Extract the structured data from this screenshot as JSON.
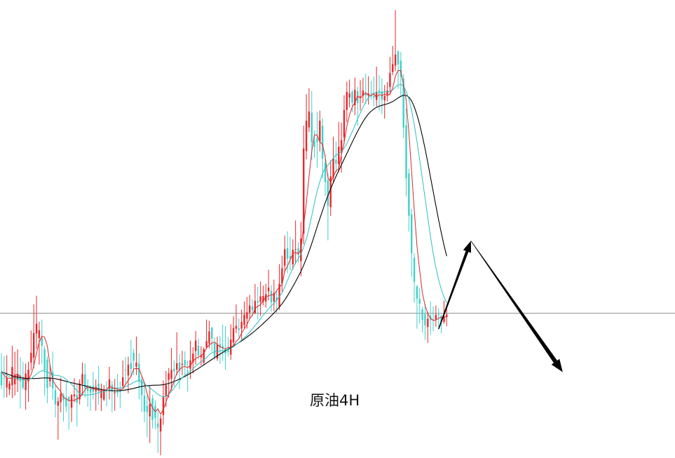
{
  "chart_data": {
    "type": "candlestick",
    "title": "",
    "annotation": "原油4H",
    "xlabel": "",
    "ylabel": "",
    "grid": false,
    "legend": "none",
    "colors": {
      "up": "#e8262c",
      "down": "#3fd0c8",
      "ma_fast": "#d42a2a",
      "ma_mid": "#2bbfbf",
      "ma_slow": "#000000",
      "level_line": "#8a8a8a",
      "arrow": "#000000"
    },
    "ylim": [
      0,
      100
    ],
    "horizontal_level": 32,
    "candles": [
      [
        19.04,
        16.09,
        23.14,
        15.27
      ],
      [
        17.66,
        17.53,
        22.52,
        13.26
      ],
      [
        15.58,
        17.78,
        22.72,
        13.4
      ],
      [
        15.13,
        16.49,
        17.06,
        13.94
      ],
      [
        16.07,
        20.11,
        24.8,
        13.22
      ],
      [
        16.29,
        18.46,
        23.49,
        13.82
      ],
      [
        17.28,
        18.63,
        24.04,
        14.58
      ],
      [
        18.29,
        16.91,
        22.28,
        10.94
      ],
      [
        17.96,
        15.49,
        21.21,
        15.14
      ],
      [
        15.01,
        18.68,
        20.9,
        10.64
      ],
      [
        16.91,
        19.54,
        21.26,
        12.38
      ],
      [
        21.08,
        23.24,
        28.19,
        19.38
      ],
      [
        22.16,
        27.64,
        33.96,
        19.84
      ],
      [
        27.53,
        29.67,
        35.88,
        24.08
      ],
      [
        26.48,
        28.26,
        30.12,
        20.65
      ],
      [
        26.62,
        24.76,
        30.6,
        20.82
      ],
      [
        24.05,
        19.39,
        24.72,
        13.78
      ],
      [
        21.76,
        15.49,
        22.44,
        12.14
      ],
      [
        16.97,
        17.68,
        20.66,
        15.73
      ],
      [
        19.03,
        15.44,
        23.53,
        12.92
      ],
      [
        14.98,
        11.85,
        16.14,
        8.97
      ],
      [
        11.55,
        12.53,
        13.45,
        4.06
      ],
      [
        12.34,
        14.16,
        17.75,
        10.09
      ],
      [
        13.9,
        12.79,
        14.39,
        8.03
      ],
      [
        13.23,
        11.37,
        16.66,
        10.11
      ],
      [
        13.48,
        12.6,
        13.63,
        6.27
      ],
      [
        11.11,
        13.91,
        14.11,
        7.96
      ],
      [
        13.63,
        14.05,
        17.61,
        12.27
      ],
      [
        13.96,
        12.2,
        16.4,
        6.93
      ],
      [
        12.95,
        16.48,
        17.4,
        11.87
      ],
      [
        16.37,
        18.51,
        21.08,
        13.8
      ],
      [
        18.45,
        15.42,
        20.89,
        13.35
      ],
      [
        16.06,
        14.8,
        17.41,
        11.31
      ],
      [
        15.24,
        14.42,
        16.17,
        10.39
      ],
      [
        15.96,
        14.64,
        19.08,
        12.97
      ],
      [
        14.73,
        15.78,
        17.35,
        10.46
      ],
      [
        16.43,
        14.77,
        20.3,
        11.73
      ],
      [
        13.25,
        14.7,
        16.46,
        10.38
      ],
      [
        12.92,
        14.98,
        16.1,
        12.59
      ],
      [
        15.43,
        15.39,
        16.99,
        11.42
      ],
      [
        15.34,
        17.37,
        20.16,
        12.95
      ],
      [
        16.21,
        14.73,
        17.05,
        10.1
      ],
      [
        14.3,
        14.52,
        17.49,
        10.46
      ],
      [
        14.72,
        14.38,
        18.56,
        13.48
      ],
      [
        14.79,
        14.56,
        16.85,
        11.02
      ],
      [
        15.87,
        17.83,
        21.55,
        15.41
      ],
      [
        19.54,
        19.5,
        22.35,
        16.11
      ],
      [
        18.26,
        20.62,
        22.39,
        14.31
      ],
      [
        21.01,
        19.69,
        26.15,
        18.06
      ],
      [
        23.23,
        21.49,
        24.1,
        18.31
      ],
      [
        20.16,
        21.08,
        26.84,
        18.33
      ],
      [
        20.86,
        16.92,
        23.13,
        12.99
      ],
      [
        17.32,
        13.91,
        17.99,
        10.14
      ],
      [
        13.77,
        10.3,
        16.75,
        7.89
      ],
      [
        11.55,
        10.13,
        13.89,
        4.58
      ],
      [
        9.2,
        11.91,
        16.0,
        3.34
      ],
      [
        13.2,
        8.44,
        13.97,
        6.53
      ],
      [
        11.55,
        8.88,
        12.74,
        6.35
      ],
      [
        7.61,
        6.72,
        10.54,
        1.14
      ],
      [
        5.87,
        8.74,
        9.45,
        0.6
      ],
      [
        9.5,
        13.64,
        17.16,
        7.33
      ],
      [
        13.59,
        16.13,
        19.23,
        11.3
      ],
      [
        17.3,
        18.72,
        19.88,
        13.3
      ],
      [
        17.52,
        19.49,
        24.33,
        14.92
      ],
      [
        19.73,
        19.17,
        21.54,
        15.78
      ],
      [
        19.54,
        20.94,
        27.78,
        18.33
      ],
      [
        21.08,
        19.24,
        22.93,
        15.23
      ],
      [
        20.61,
        20.82,
        23.7,
        18.28
      ],
      [
        21.68,
        20.49,
        23.61,
        18.37
      ],
      [
        19.35,
        19.29,
        21.52,
        14.66
      ],
      [
        19.73,
        21.58,
        25.93,
        17.44
      ],
      [
        21.2,
        23.07,
        24.51,
        18.71
      ],
      [
        23.63,
        25.97,
        28.07,
        20.68
      ],
      [
        24.78,
        22.67,
        26.32,
        21.75
      ],
      [
        22.27,
        22.72,
        24.71,
        20.46
      ],
      [
        21.09,
        24.07,
        24.44,
        20.5
      ],
      [
        24.46,
        25.84,
        30.59,
        24.07
      ],
      [
        25.32,
        27.99,
        30.32,
        24.28
      ],
      [
        28.84,
        26.41,
        28.98,
        23.52
      ],
      [
        25.39,
        22.31,
        26.63,
        21.64
      ],
      [
        21.96,
        25.05,
        26.82,
        21.47
      ],
      [
        25.13,
        24.44,
        26.95,
        20.77
      ],
      [
        24.72,
        24.24,
        29.51,
        21.5
      ],
      [
        23.91,
        23.12,
        29.15,
        19.53
      ],
      [
        24.03,
        23.41,
        26.71,
        22.47
      ],
      [
        22.85,
        26.21,
        29.58,
        21.7
      ],
      [
        25.53,
        28.74,
        31.29,
        24.86
      ],
      [
        28.57,
        29.18,
        33.94,
        27.57
      ],
      [
        28.67,
        28.29,
        30.83,
        26.37
      ],
      [
        28.59,
        30.08,
        32.79,
        26.24
      ],
      [
        29.39,
        31.68,
        34.56,
        28.73
      ],
      [
        30.8,
        32.22,
        35.59,
        28.61
      ],
      [
        32.14,
        33.7,
        36.07,
        30.72
      ],
      [
        33.48,
        32.71,
        35.14,
        31.3
      ],
      [
        32.02,
        34.73,
        38.44,
        31.81
      ],
      [
        34.67,
        34.33,
        37.83,
        30.61
      ],
      [
        34.52,
        35.74,
        39.01,
        31.4
      ],
      [
        34.5,
        35.83,
        38.09,
        33.73
      ],
      [
        34.59,
        36.2,
        38.49,
        33.24
      ],
      [
        36.83,
        37.68,
        41.62,
        34.83
      ],
      [
        36.94,
        34.41,
        38.2,
        32.36
      ],
      [
        34.62,
        36.48,
        39.44,
        32.48
      ],
      [
        35.5,
        34.84,
        36.88,
        32.11
      ],
      [
        33.45,
        38.51,
        42.87,
        32.71
      ],
      [
        38.6,
        41.92,
        44.74,
        36.74
      ],
      [
        42.52,
        46.16,
        49.17,
        40.97
      ],
      [
        46.42,
        44.03,
        50.11,
        40.85
      ],
      [
        44.64,
        44.1,
        48.91,
        41.51
      ],
      [
        42.81,
        46.02,
        48.32,
        41.63
      ],
      [
        46.05,
        46.16,
        52.51,
        42.84
      ],
      [
        46.35,
        45.01,
        47.67,
        43.18
      ],
      [
        43.51,
        48.51,
        52.19,
        40.21
      ],
      [
        49.6,
        68.43,
        73.46,
        47.27
      ],
      [
        67.87,
        74.55,
        80.41,
        66.01
      ],
      [
        73.09,
        76.63,
        81.72,
        72.04
      ],
      [
        76.33,
        69.78,
        81.13,
        65.93
      ],
      [
        69.96,
        68.8,
        72.43,
        66.42
      ],
      [
        70.67,
        69.81,
        76.52,
        64.16
      ],
      [
        70.01,
        74.55,
        76.78,
        67.77
      ],
      [
        73.48,
        66.17,
        75.12,
        61.84
      ],
      [
        65.16,
        60.96,
        66.93,
        57.96
      ],
      [
        61.41,
        55.71,
        62.9,
        48.11
      ],
      [
        55.46,
        62.25,
        65.8,
        53.52
      ],
      [
        61.97,
        66.21,
        71.03,
        60.7
      ],
      [
        65.92,
        65.06,
        69.94,
        63.12
      ],
      [
        64.98,
        68.78,
        74.3,
        63.22
      ],
      [
        67.76,
        70.27,
        74.12,
        63.09
      ],
      [
        70.94,
        76.93,
        80.2,
        69.38
      ],
      [
        76.94,
        80.91,
        83.21,
        74.24
      ],
      [
        79.7,
        80.58,
        83.65,
        77.55
      ],
      [
        80.96,
        78.6,
        81.37,
        76.46
      ],
      [
        77.99,
        81.37,
        84.09,
        75.77
      ],
      [
        81.07,
        78.45,
        82.06,
        73.38
      ],
      [
        79.55,
        79.89,
        83.5,
        76.78
      ],
      [
        80.09,
        81.21,
        84.01,
        78.47
      ],
      [
        80.44,
        80.1,
        85.01,
        78.26
      ],
      [
        80.13,
        80.56,
        84.38,
        78.14
      ],
      [
        80.64,
        80.63,
        83.37,
        79.21
      ],
      [
        80.12,
        79.66,
        84.31,
        77.71
      ],
      [
        79.14,
        80.92,
        86.53,
        77.72
      ],
      [
        81.26,
        80.9,
        84.6,
        76.8
      ],
      [
        81.04,
        79.22,
        83.88,
        75.99
      ],
      [
        79.05,
        80.05,
        82.46,
        75.02
      ],
      [
        80.33,
        81.19,
        83.12,
        78.82
      ],
      [
        82.01,
        85.07,
        88.67,
        80.2
      ],
      [
        85.33,
        87.06,
        91.11,
        84.6
      ],
      [
        86.74,
        89.17,
        99.0,
        85.51
      ],
      [
        89.85,
        87.03,
        90.15,
        81.62
      ],
      [
        87.81,
        84.29,
        89.73,
        80.13
      ],
      [
        83.82,
        73.06,
        84.84,
        70.79
      ],
      [
        73.55,
        61.84,
        77.25,
        57.82
      ],
      [
        62.91,
        53.58,
        63.98,
        50.04
      ],
      [
        53.82,
        45.26,
        55.04,
        40.07
      ],
      [
        44.26,
        38.97,
        45.25,
        34.35
      ],
      [
        37.92,
        35.24,
        38.25,
        28.57
      ],
      [
        35.14,
        34.14,
        37.58,
        29.78
      ],
      [
        32.88,
        30.54,
        33.45,
        27.71
      ],
      [
        31.82,
        29.29,
        34.11,
        26.12
      ],
      [
        28.96,
        30.8,
        32.31,
        25.45
      ],
      [
        31.49,
        30.47,
        34.61,
        27.23
      ],
      [
        30.62,
        30.41,
        33.52,
        28.02
      ],
      [
        30.66,
        31.64,
        33.71,
        29.05
      ],
      [
        31.74,
        31.69,
        33.1,
        28.97
      ],
      [
        31.27,
        30.07,
        31.7,
        27.55
      ],
      [
        30.1,
        31.32,
        34.8,
        29.67
      ],
      [
        31.14,
        31.71,
        33.61,
        29.12
      ]
    ],
    "ma_fast": [
      19.04,
      18.33,
      17.71,
      17.53,
      17.59,
      18.32,
      18.49,
      18.02,
      17.48,
      17.48,
      17.32,
      18.45,
      20.33,
      23.23,
      25.55,
      26.94,
      26.73,
      24.77,
      20.57,
      17.28,
      16.15,
      15.41,
      14.69,
      13.4,
      13.11,
      12.64,
      12.81,
      12.71,
      13.07,
      13.39,
      14.16,
      15.1,
      15.76,
      15.41,
      15.19,
      15.44,
      14.95,
      14.74,
      15.16,
      14.99,
      15.89,
      15.54,
      15.42,
      15.21,
      15.08,
      15.25,
      16.26,
      17.19,
      17.98,
      19.69,
      19.78,
      19.73,
      18.18,
      16.55,
      14.18,
      12.31,
      11.12,
      10.18,
      10.89,
      9.66,
      10.75,
      12.32,
      14.23,
      15.31,
      17.17,
      18.71,
      19.54,
      20.11,
      20.24,
      19.99,
      20.41,
      21.4,
      22.03,
      22.3,
      22.64,
      23.16,
      24.34,
      24.99,
      25.41,
      25.62,
      25.11,
      24.61,
      24.32,
      24.08,
      24.47,
      24.46,
      24.82,
      25.78,
      26.33,
      27.62,
      28.55,
      29.5,
      30.8,
      31.6,
      33.03,
      33.54,
      33.91,
      34.69,
      35.61,
      35.85,
      36.1,
      36.07,
      37.01,
      37.71,
      38.41,
      41.25,
      42.4,
      43.81,
      45.08,
      45.51,
      45.06,
      46.17,
      51.4,
      56.49,
      62.22,
      67.78,
      71.42,
      71.38,
      69.87,
      69.32,
      66.54,
      61.96,
      60.99,
      62.24,
      63.46,
      64.0,
      67.01,
      69.65,
      73.28,
      75.84,
      77.61,
      78.61,
      80.0,
      79.62,
      80.21,
      80.74,
      80.18,
      80.13,
      80.53,
      79.7,
      80.35,
      80.13,
      80.45,
      80.1,
      80.5,
      81.79,
      84.41,
      85.67,
      85.64,
      82.53,
      79.07,
      71.76,
      63.45,
      54.63,
      46.86,
      41.41,
      36.47,
      33.67,
      31.92,
      30.9,
      30.42,
      30.51,
      30.83,
      31.21,
      31.01,
      31.37
    ],
    "ma_mid": [
      19.04,
      18.75,
      18.32,
      17.89,
      17.64,
      17.62,
      17.59,
      17.45,
      17.34,
      17.27,
      17.32,
      17.56,
      18.01,
      18.59,
      19.02,
      19.27,
      19.19,
      18.93,
      18.71,
      18.39,
      18.28,
      18.22,
      18.1,
      17.84,
      17.36,
      16.82,
      16.3,
      15.6,
      14.83,
      14.33,
      14.02,
      13.89,
      13.96,
      14.02,
      14.09,
      14.24,
      14.42,
      14.53,
      14.7,
      14.8,
      15.11,
      15.33,
      15.42,
      15.45,
      15.46,
      15.55,
      15.76,
      16.07,
      16.35,
      16.71,
      17.01,
      17.06,
      16.83,
      16.47,
      15.95,
      15.52,
      15.03,
      14.57,
      14.11,
      13.69,
      13.54,
      13.63,
      14.1,
      14.73,
      15.47,
      16.26,
      17.05,
      17.73,
      18.3,
      18.73,
      19.18,
      19.73,
      20.31,
      20.8,
      21.25,
      21.68,
      22.22,
      22.79,
      23.24,
      23.52,
      23.6,
      23.68,
      23.77,
      23.87,
      23.99,
      24.22,
      24.59,
      25.07,
      25.55,
      26.06,
      26.59,
      27.14,
      27.84,
      28.53,
      29.27,
      30.0,
      30.76,
      31.53,
      32.27,
      32.98,
      33.63,
      34.23,
      34.9,
      35.67,
      36.5,
      37.85,
      39.24,
      40.6,
      41.94,
      43.13,
      44.1,
      45.06,
      46.59,
      48.42,
      50.77,
      53.54,
      56.34,
      58.95,
      61.08,
      62.95,
      64.11,
      64.71,
      65.46,
      66.33,
      66.97,
      67.24,
      67.83,
      68.49,
      69.5,
      70.8,
      72.14,
      73.51,
      74.95,
      76.26,
      77.54,
      78.74,
      79.61,
      80.2,
      80.62,
      80.73,
      80.78,
      80.78,
      80.91,
      80.96,
      81.07,
      81.36,
      82.0,
      82.44,
      82.65,
      82.22,
      81.09,
      79.3,
      76.86,
      73.58,
      69.95,
      65.84,
      61.61,
      57.42,
      53.16,
      49.02,
      45.28,
      42.06,
      39.39,
      37.29,
      35.58,
      34.32
    ],
    "ma_slow": [
      19.04,
      18.85,
      18.62,
      18.38,
      18.15,
      17.99,
      17.87,
      17.77,
      17.69,
      17.63,
      17.58,
      17.56,
      17.56,
      17.59,
      17.63,
      17.68,
      17.71,
      17.71,
      17.68,
      17.62,
      17.52,
      17.4,
      17.26,
      17.1,
      16.93,
      16.77,
      16.63,
      16.5,
      16.37,
      16.23,
      16.09,
      15.94,
      15.79,
      15.65,
      15.51,
      15.38,
      15.26,
      15.15,
      15.05,
      14.97,
      14.91,
      14.87,
      14.86,
      14.87,
      14.9,
      14.95,
      15.03,
      15.13,
      15.25,
      15.39,
      15.54,
      15.69,
      15.82,
      15.92,
      15.99,
      16.04,
      16.07,
      16.09,
      16.11,
      16.14,
      16.22,
      16.33,
      16.49,
      16.68,
      16.91,
      17.16,
      17.44,
      17.74,
      18.05,
      18.37,
      18.7,
      19.05,
      19.42,
      19.8,
      20.18,
      20.57,
      20.97,
      21.38,
      21.79,
      22.19,
      22.58,
      22.96,
      23.33,
      23.69,
      24.04,
      24.39,
      24.75,
      25.12,
      25.5,
      25.89,
      26.3,
      26.73,
      27.18,
      27.65,
      28.14,
      28.65,
      29.17,
      29.72,
      30.28,
      30.86,
      31.45,
      32.06,
      32.7,
      33.38,
      34.1,
      34.94,
      35.86,
      36.85,
      37.9,
      38.99,
      40.11,
      41.27,
      42.6,
      44.07,
      45.68,
      47.42,
      49.24,
      51.09,
      52.92,
      54.72,
      56.43,
      58.01,
      59.5,
      60.91,
      62.26,
      63.54,
      64.8,
      66.05,
      67.3,
      68.56,
      69.82,
      71.05,
      72.23,
      73.34,
      74.37,
      75.29,
      76.06,
      76.67,
      77.15,
      77.5,
      77.76,
      77.96,
      78.13,
      78.3,
      78.51,
      78.79,
      79.18,
      79.59,
      79.96,
      80.17,
      80.15,
      79.76,
      78.94,
      77.62,
      75.85,
      73.67,
      71.14,
      68.33,
      65.31,
      62.14,
      58.93,
      55.75,
      52.67,
      49.76,
      47.06,
      44.62
    ],
    "projection": {
      "start_index": 162,
      "start_value": 28.5,
      "peak_index": 174,
      "peak_value": 48.0,
      "end_index": 208,
      "end_value": 19.0
    }
  }
}
